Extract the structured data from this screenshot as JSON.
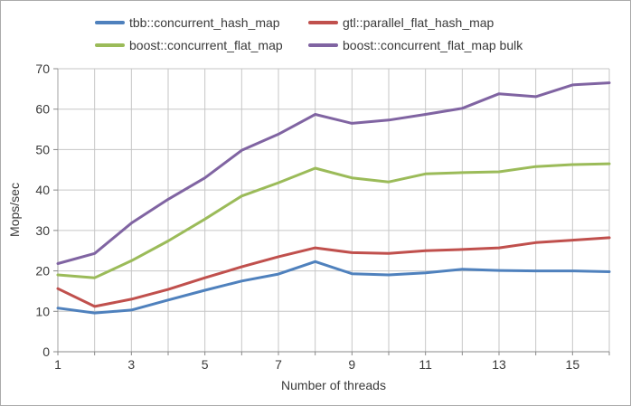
{
  "colors": {
    "background": "#FFFFFF",
    "frame_border": "#ABABAB",
    "gridline": "#C6C6C6",
    "x_axis_line": "#888888",
    "y_axis_line": "#A0A0A0",
    "tick_color": "#888888",
    "text": "#3A3A3A"
  },
  "chart_data": {
    "type": "line",
    "title": "",
    "xlabel": "Number of threads",
    "ylabel": "Mops/sec",
    "x": [
      1,
      2,
      3,
      4,
      5,
      6,
      7,
      8,
      9,
      10,
      11,
      12,
      13,
      14,
      15,
      16
    ],
    "xlim": [
      1,
      16
    ],
    "ylim": [
      0,
      70
    ],
    "y_ticks": [
      0,
      10,
      20,
      30,
      40,
      50,
      60,
      70
    ],
    "x_tick_label_positions": [
      1,
      3,
      5,
      7,
      9,
      11,
      13,
      15
    ],
    "x_tick_labels": [
      "1",
      "3",
      "5",
      "7",
      "9",
      "11",
      "13",
      "15"
    ],
    "grid": "both",
    "legend_position": "top",
    "series": [
      {
        "name": "tbb::concurrent_hash_map",
        "color": "#4F81BD",
        "values": [
          10.8,
          9.6,
          10.3,
          12.8,
          15.2,
          17.5,
          19.2,
          22.3,
          19.3,
          19.0,
          19.5,
          20.4,
          20.1,
          20.0,
          20.0,
          19.8
        ]
      },
      {
        "name": "gtl::parallel_flat_hash_map",
        "color": "#C0504D",
        "values": [
          15.6,
          11.2,
          13.0,
          15.4,
          18.3,
          21.0,
          23.5,
          25.7,
          24.5,
          24.3,
          25.0,
          25.3,
          25.7,
          27.0,
          27.6,
          28.2
        ]
      },
      {
        "name": "boost::concurrent_flat_map",
        "color": "#9BBB59",
        "values": [
          19.0,
          18.3,
          22.5,
          27.4,
          32.8,
          38.5,
          41.8,
          45.4,
          43.0,
          42.0,
          44.0,
          44.3,
          44.5,
          45.8,
          46.3,
          46.5
        ]
      },
      {
        "name": "boost::concurrent_flat_map bulk",
        "color": "#8064A2",
        "values": [
          21.8,
          24.3,
          31.8,
          37.7,
          43.0,
          49.8,
          53.8,
          58.7,
          56.5,
          57.3,
          58.7,
          60.2,
          63.8,
          63.1,
          66.0,
          66.5
        ]
      }
    ]
  }
}
